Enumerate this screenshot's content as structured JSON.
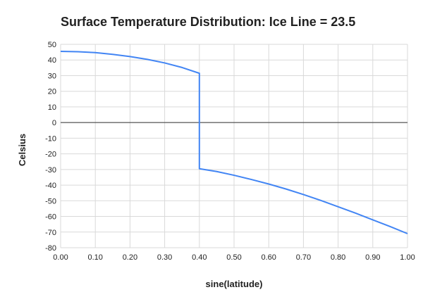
{
  "chart_data": {
    "type": "line",
    "title": "Surface Temperature Distribution: Ice Line = 23.5",
    "xlabel": "sine(latitude)",
    "ylabel": "Celsius",
    "xlim": [
      0,
      1
    ],
    "ylim": [
      -80,
      50
    ],
    "x_ticks": [
      "0.00",
      "0.10",
      "0.20",
      "0.30",
      "0.40",
      "0.50",
      "0.60",
      "0.70",
      "0.80",
      "0.90",
      "1.00"
    ],
    "y_ticks": [
      "50",
      "40",
      "30",
      "20",
      "10",
      "0",
      "-10",
      "-20",
      "-30",
      "-40",
      "-50",
      "-60",
      "-70",
      "-80"
    ],
    "grid": true,
    "legend": "none",
    "colors": {
      "line": "#4285f4",
      "grid": "#d9d9d9",
      "zero_line": "#333333"
    },
    "series": [
      {
        "x": [
          0.0,
          0.05,
          0.1,
          0.15,
          0.2,
          0.25,
          0.3,
          0.35,
          0.4,
          0.4,
          0.45,
          0.5,
          0.55,
          0.6,
          0.65,
          0.7,
          0.75,
          0.8,
          0.85,
          0.9,
          0.95,
          1.0
        ],
        "y": [
          45.5,
          45.3,
          44.7,
          43.6,
          42.2,
          40.4,
          38.1,
          35.2,
          31.5,
          -29.5,
          -31.3,
          -33.7,
          -36.4,
          -39.3,
          -42.5,
          -46.0,
          -49.8,
          -53.8,
          -57.9,
          -62.2,
          -66.5,
          -71.0
        ]
      }
    ]
  }
}
